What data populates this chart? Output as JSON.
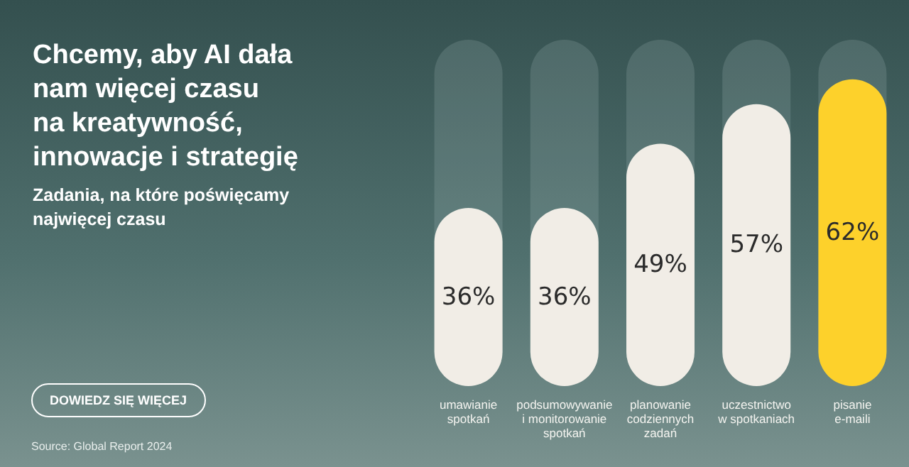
{
  "chart_data": {
    "type": "bar",
    "title": "Chcemy, aby AI dała\nnam więcej czasu\nna kreatywność,\ninnowacje i strategię",
    "subtitle": "Zadania, na które poświęcamy\nnajwięcej czasu",
    "categories": [
      "umawianie\nspotkań",
      "podsumowywanie\ni monitorowanie\nspotkań",
      "planowanie\ncodziennych\nzadań",
      "uczestnictwo\nw spotkaniach",
      "pisanie\ne-maili"
    ],
    "values": [
      36,
      36,
      49,
      57,
      62
    ],
    "colors": [
      "#f1ede6",
      "#f1ede6",
      "#f1ede6",
      "#f1ede6",
      "#fdd12b"
    ],
    "value_labels": [
      "36%",
      "36%",
      "49%",
      "57%",
      "62%"
    ],
    "tick_labels": "x",
    "annotations": [
      "DOWIEDZ SIĘ WIĘCEJ",
      "Source: Global Report 2024"
    ]
  }
}
